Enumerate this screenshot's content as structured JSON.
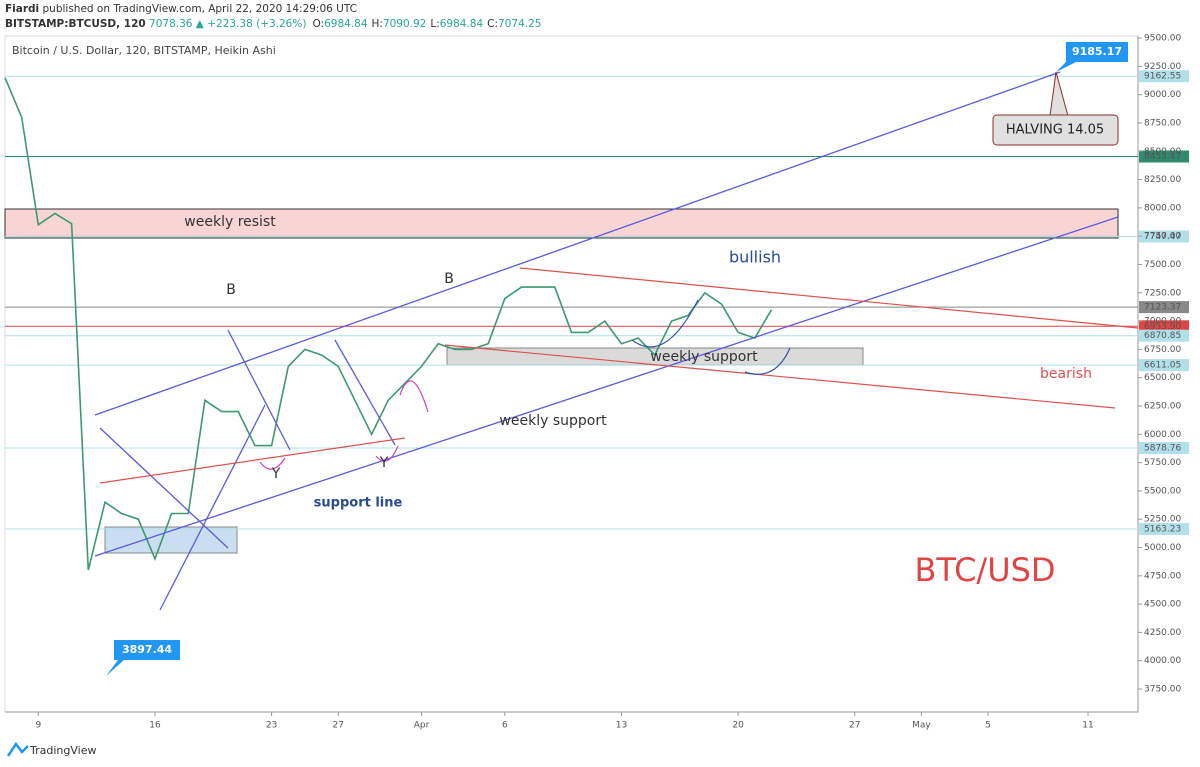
{
  "header": {
    "author": "Fiardi",
    "published": "published on TradingView.com, April 22, 2020 14:29:06 UTC",
    "symbol": "BITSTAMP:BTCUSD, 120",
    "change": "7078.36 ▲ +223.38 (+3.26%)",
    "ohlc": [
      {
        "label": "O:",
        "value": "6984.84"
      },
      {
        "label": "H:",
        "value": "7090.92"
      },
      {
        "label": "L:",
        "value": "6984.84"
      },
      {
        "label": "C:",
        "value": "7074.25"
      }
    ]
  },
  "footer": "TradingView",
  "chart_data": {
    "type": "line",
    "title": "Bitcoin / U.S. Dollar, 120, BITSTAMP, Heikin Ashi",
    "color": "#3d9970",
    "x": [
      "2020-03-07",
      "2020-03-08",
      "2020-03-09",
      "2020-03-10",
      "2020-03-11",
      "2020-03-12",
      "2020-03-13",
      "2020-03-14",
      "2020-03-15",
      "2020-03-16",
      "2020-03-17",
      "2020-03-18",
      "2020-03-19",
      "2020-03-20",
      "2020-03-21",
      "2020-03-22",
      "2020-03-23",
      "2020-03-24",
      "2020-03-25",
      "2020-03-26",
      "2020-03-27",
      "2020-03-28",
      "2020-03-29",
      "2020-03-30",
      "2020-03-31",
      "2020-04-01",
      "2020-04-02",
      "2020-04-03",
      "2020-04-04",
      "2020-04-05",
      "2020-04-06",
      "2020-04-07",
      "2020-04-08",
      "2020-04-09",
      "2020-04-10",
      "2020-04-11",
      "2020-04-12",
      "2020-04-13",
      "2020-04-14",
      "2020-04-15",
      "2020-04-16",
      "2020-04-17",
      "2020-04-18",
      "2020-04-19",
      "2020-04-20",
      "2020-04-21",
      "2020-04-22"
    ],
    "values": [
      9150,
      8800,
      7850,
      7950,
      7860,
      4800,
      5400,
      5300,
      5250,
      4900,
      5300,
      5300,
      6300,
      6200,
      6200,
      5900,
      5900,
      6600,
      6750,
      6700,
      6600,
      6300,
      6000,
      6300,
      6450,
      6600,
      6800,
      6750,
      6750,
      6800,
      7200,
      7300,
      7300,
      7300,
      6900,
      6900,
      7000,
      6800,
      6850,
      6700,
      7000,
      7050,
      7250,
      7150,
      6900,
      6850,
      7100
    ],
    "xlim": [
      "2020-03-07",
      "2020-05-14"
    ],
    "xticks": [
      {
        "value": "2020-03-09",
        "label": "9"
      },
      {
        "value": "2020-03-16",
        "label": "16"
      },
      {
        "value": "2020-03-23",
        "label": "23"
      },
      {
        "value": "2020-03-27",
        "label": "27"
      },
      {
        "value": "2020-04-01",
        "label": "Apr"
      },
      {
        "value": "2020-04-06",
        "label": "6"
      },
      {
        "value": "2020-04-13",
        "label": "13"
      },
      {
        "value": "2020-04-20",
        "label": "20"
      },
      {
        "value": "2020-04-27",
        "label": "27"
      },
      {
        "value": "2020-05-01",
        "label": "May"
      },
      {
        "value": "2020-05-05",
        "label": "5"
      },
      {
        "value": "2020-05-11",
        "label": "11"
      }
    ],
    "ylim": [
      3547,
      9518
    ],
    "yticks": [
      {
        "value": 3750,
        "label": "3750.00"
      },
      {
        "value": 4000,
        "label": "4000.00"
      },
      {
        "value": 4250,
        "label": "4250.00"
      },
      {
        "value": 4500,
        "label": "4500.00"
      },
      {
        "value": 4750,
        "label": "4750.00"
      },
      {
        "value": 5000,
        "label": "5000.00"
      },
      {
        "value": 5250,
        "label": "5250.00"
      },
      {
        "value": 5500,
        "label": "5500.00"
      },
      {
        "value": 5750,
        "label": "5750.00"
      },
      {
        "value": 6000,
        "label": "6000.00"
      },
      {
        "value": 6250,
        "label": "6250.00"
      },
      {
        "value": 6500,
        "label": "6500.00"
      },
      {
        "value": 6750,
        "label": "6750.00"
      },
      {
        "value": 7000,
        "label": "7000.00"
      },
      {
        "value": 7250,
        "label": "7250.00"
      },
      {
        "value": 7500,
        "label": "7500.00"
      },
      {
        "value": 7750,
        "label": "7750.00"
      },
      {
        "value": 8000,
        "label": "8000.00"
      },
      {
        "value": 8250,
        "label": "8250.00"
      },
      {
        "value": 8500,
        "label": "8500.00"
      },
      {
        "value": 8750,
        "label": "8750.00"
      },
      {
        "value": 9000,
        "label": "9000.00"
      },
      {
        "value": 9250,
        "label": "9250.00"
      },
      {
        "value": 9500,
        "label": "9500.00"
      }
    ],
    "levels": [
      {
        "value": 9162.55,
        "bg": "#b2e0ea",
        "fg": "#222"
      },
      {
        "value": 8453.47,
        "bg": "#2e8b6e",
        "fg": "#fff"
      },
      {
        "value": 7747.47,
        "bg": "#b2e0ea",
        "fg": "#222"
      },
      {
        "value": 7123.37,
        "bg": "#888",
        "fg": "#fff"
      },
      {
        "value": 6953.9,
        "label": "6953.90",
        "bg": "#e04545",
        "fg": "#fff"
      },
      {
        "value": 6870.85,
        "bg": "#b2e0ea",
        "fg": "#222"
      },
      {
        "value": 6611.05,
        "bg": "#b2e0ea",
        "fg": "#222"
      },
      {
        "value": 5878.76,
        "bg": "#b2e0ea",
        "fg": "#222"
      },
      {
        "value": 5163.23,
        "bg": "#b2e0ea",
        "fg": "#222"
      }
    ],
    "annotations": {
      "resist": "weekly resist",
      "bullish": "bullish",
      "bearish": "bearish",
      "support1": "weekly support",
      "support2": "weekly support",
      "support_line": "support line",
      "b1": "B",
      "b2": "B",
      "y1": "Y",
      "y2": "Y",
      "halving": "HALVING 14.05",
      "pair": "BTC/USD",
      "high": "9185.17",
      "low": "3897.44"
    }
  }
}
